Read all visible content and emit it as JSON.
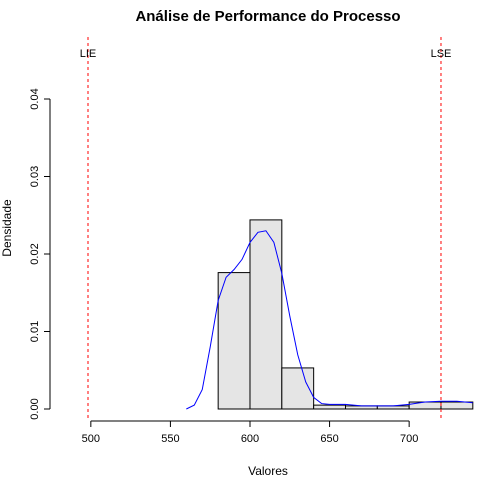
{
  "chart_data": {
    "type": "histogram",
    "title": "Análise de Performance do Processo",
    "xlabel": "Valores",
    "ylabel": "Densidade",
    "xlim": [
      480,
      742
    ],
    "ylim": [
      0,
      0.04
    ],
    "x_ticks": [
      "500",
      "550",
      "600",
      "650",
      "700"
    ],
    "y_ticks": [
      "0.00",
      "0.01",
      "0.02",
      "0.03",
      "0.04"
    ],
    "grid": false,
    "bars": [
      {
        "x0": 580,
        "x1": 600,
        "density": 0.0176
      },
      {
        "x0": 600,
        "x1": 620,
        "density": 0.0244
      },
      {
        "x0": 620,
        "x1": 640,
        "density": 0.0053
      },
      {
        "x0": 640,
        "x1": 660,
        "density": 0.0005
      },
      {
        "x0": 660,
        "x1": 680,
        "density": 0.0004
      },
      {
        "x0": 680,
        "x1": 700,
        "density": 0.0004
      },
      {
        "x0": 700,
        "x1": 720,
        "density": 0.0009
      },
      {
        "x0": 720,
        "x1": 740,
        "density": 0.0009
      }
    ],
    "bar_fill": "#e5e5e5",
    "bar_stroke": "#000000",
    "density_curve": {
      "color": "#0000ff",
      "x": [
        560,
        565,
        570,
        575,
        580,
        585,
        590,
        595,
        600,
        605,
        610,
        615,
        620,
        625,
        630,
        635,
        640,
        645,
        650,
        660,
        670,
        680,
        690,
        700,
        710,
        720,
        730,
        740
      ],
      "y": [
        0.0,
        0.0005,
        0.0025,
        0.008,
        0.014,
        0.017,
        0.018,
        0.0193,
        0.0215,
        0.0228,
        0.023,
        0.0215,
        0.0175,
        0.012,
        0.007,
        0.0035,
        0.0015,
        0.0007,
        0.0006,
        0.0006,
        0.0004,
        0.0004,
        0.0004,
        0.0006,
        0.0009,
        0.001,
        0.001,
        0.0008
      ]
    },
    "limits": [
      {
        "label": "LIE",
        "x": 480,
        "color": "#ff0000"
      },
      {
        "label": "LSE",
        "x": 720,
        "color": "#ff0000"
      }
    ]
  }
}
